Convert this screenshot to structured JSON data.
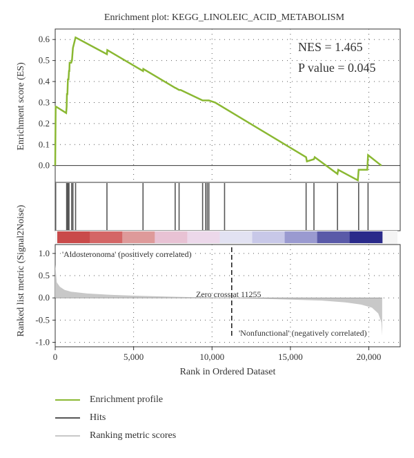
{
  "colors": {
    "profile": "#8ab832",
    "hits": "#555555",
    "metric": "#c8c8c8",
    "pos_label": "#c0392b",
    "neg_label": "#3b3b9a",
    "grid": "#555555"
  },
  "chart_data": {
    "type": "line",
    "title": "Enrichment plot: KEGG_LINOLEIC_ACID_METABOLISM",
    "xlabel": "Rank in Ordered Dataset",
    "xlim": [
      0,
      22000
    ],
    "x_ticks": [
      "0",
      "5,000",
      "10,000",
      "15,000",
      "20,000"
    ],
    "x_tick_values": [
      0,
      5000,
      10000,
      15000,
      20000
    ],
    "es_panel": {
      "ylabel": "Enrichment score (ES)",
      "ylim": [
        -0.08,
        0.65
      ],
      "y_ticks": [
        "0.6",
        "0.5",
        "0.4",
        "0.3",
        "0.2",
        "0.1",
        "0.0"
      ],
      "y_tick_values": [
        0.6,
        0.5,
        0.4,
        0.3,
        0.2,
        0.1,
        0.0
      ],
      "nes_text": "NES = 1.465",
      "pvalue_text": "P value = 0.045",
      "series": [
        {
          "name": "Enrichment profile",
          "x": [
            0,
            30,
            60,
            700,
            730,
            750,
            780,
            810,
            850,
            880,
            900,
            920,
            1020,
            1050,
            1070,
            1130,
            1300,
            3300,
            3320,
            5600,
            5620,
            7650,
            7670,
            7900,
            8000,
            9400,
            9500,
            9600,
            9700,
            9800,
            10200,
            16000,
            16050,
            16500,
            16550,
            18000,
            18050,
            19300,
            19350,
            19900,
            19950,
            20800
          ],
          "y": [
            0.0,
            0.28,
            0.28,
            0.25,
            0.28,
            0.34,
            0.34,
            0.41,
            0.41,
            0.45,
            0.45,
            0.49,
            0.49,
            0.5,
            0.5,
            0.56,
            0.61,
            0.53,
            0.55,
            0.45,
            0.46,
            0.37,
            0.37,
            0.36,
            0.36,
            0.31,
            0.31,
            0.31,
            0.31,
            0.31,
            0.3,
            0.04,
            0.02,
            0.03,
            0.04,
            -0.04,
            -0.02,
            -0.07,
            -0.02,
            -0.02,
            0.05,
            0.0
          ]
        }
      ]
    },
    "hits_panel": {
      "series_name": "Hits",
      "hit_positions": [
        30,
        730,
        780,
        850,
        880,
        1050,
        1130,
        1300,
        3300,
        5600,
        7650,
        7900,
        9400,
        9600,
        9700,
        9800,
        10800,
        16000,
        16500,
        18000,
        19350,
        19950
      ]
    },
    "gradient_stops": [
      "#c94a4a",
      "#d46666",
      "#de9a9a",
      "#e8c2d4",
      "#ecd8ea",
      "#e2e2f2",
      "#c8c8e8",
      "#9a9ad0",
      "#5a5aa8",
      "#2a2a8a"
    ],
    "metric_panel": {
      "ylabel": "Ranked list metric (Signal2Noise)",
      "series_name": "Ranking metric scores",
      "ylim": [
        -1.1,
        1.2
      ],
      "y_ticks": [
        "1.0",
        "0.5",
        "0.0",
        "-0.5",
        "-1.0"
      ],
      "y_tick_values": [
        1.0,
        0.5,
        0.0,
        -0.5,
        -1.0
      ],
      "pos_label": "'Aldosteronoma' (positively correlated)",
      "neg_label": "'Nonfunctional' (negatively correlated)",
      "zero_cross_text": "Zero cross at 11255",
      "zero_cross": 11255,
      "metric_curve": {
        "x": [
          0,
          100,
          300,
          600,
          1000,
          2000,
          3500,
          5000,
          7000,
          9000,
          11255,
          13000,
          15000,
          17000,
          18500,
          19500,
          20200,
          20600,
          20800,
          20850
        ],
        "y": [
          0.75,
          0.35,
          0.25,
          0.18,
          0.14,
          0.1,
          0.07,
          0.05,
          0.03,
          0.015,
          0.0,
          -0.02,
          -0.04,
          -0.06,
          -0.1,
          -0.15,
          -0.22,
          -0.35,
          -0.55,
          -0.85
        ]
      }
    },
    "legend": [
      "Enrichment profile",
      "Hits",
      "Ranking metric scores"
    ],
    "legend_placement": "bottom-left",
    "grid": true
  }
}
